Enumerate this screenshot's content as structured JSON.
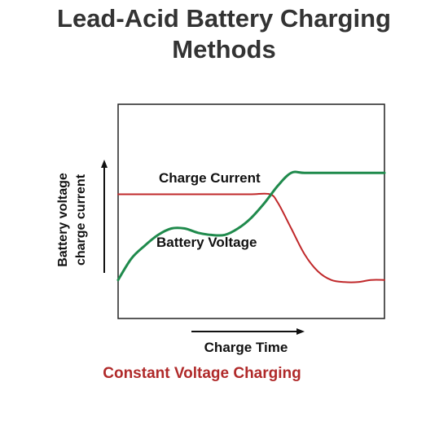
{
  "header": {
    "title_line1": "Lead-Acid Battery Charging",
    "title_line2": "Methods"
  },
  "caption": "Constant Voltage Charging",
  "colors": {
    "charge_current": "#c0282a",
    "battery_voltage": "#1f8a4c",
    "title": "#333333",
    "caption": "#b02a2a"
  },
  "chart_data": {
    "type": "line",
    "xlabel": "Charge Time",
    "ylabel_line1": "Battery voltage",
    "ylabel_line2": "charge current",
    "xlim": [
      0,
      100
    ],
    "ylim": [
      0,
      100
    ],
    "grid": false,
    "series": [
      {
        "name": "Charge Current",
        "color": "#c0282a",
        "x": [
          0,
          10,
          20,
          30,
          40,
          50,
          57,
          60,
          65,
          70,
          75,
          80,
          85,
          90,
          95,
          100
        ],
        "y": [
          58,
          58,
          58,
          58,
          58,
          58,
          58,
          54,
          42,
          30,
          22,
          18,
          17,
          17,
          18,
          18
        ]
      },
      {
        "name": "Battery Voltage",
        "color": "#1f8a4c",
        "x": [
          0,
          5,
          10,
          15,
          20,
          25,
          30,
          35,
          40,
          45,
          50,
          55,
          60,
          65,
          70,
          80,
          90,
          100
        ],
        "y": [
          18,
          28,
          34,
          39,
          42,
          42,
          40,
          39,
          39,
          42,
          47,
          54,
          62,
          68,
          68,
          68,
          68,
          68
        ]
      }
    ]
  }
}
